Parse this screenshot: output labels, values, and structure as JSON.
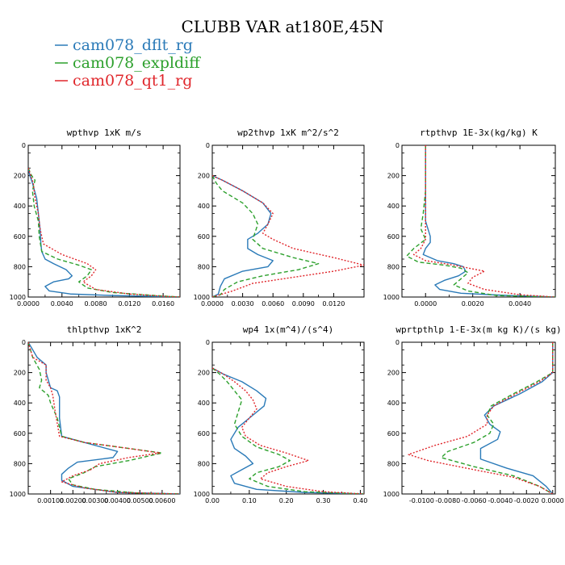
{
  "title": "CLUBB VAR at180E,45N",
  "legend": {
    "entries": [
      {
        "name": "cam078_dflt_rg",
        "color": "#2a7ab8",
        "dash": "solid"
      },
      {
        "name": "cam078_expldiff",
        "color": "#2ca02c",
        "dash": "dashed"
      },
      {
        "name": "cam078_qt1_rg",
        "color": "#e0262b",
        "dash": "dotted"
      }
    ]
  },
  "chart_data": [
    {
      "type": "line",
      "title": "wpthvp  1xK m/s",
      "xlim": [
        0,
        0.018
      ],
      "xticks": [
        0.0,
        0.004,
        0.008,
        0.012,
        0.016
      ],
      "xticklabels": [
        "0.0000",
        "0.0040",
        "0.0080",
        "0.0120",
        "0.0160"
      ],
      "ylim": [
        0,
        1000
      ],
      "yticks": [
        0,
        200,
        400,
        600,
        800,
        1000
      ],
      "series": [
        {
          "name": "cam078_dflt_rg",
          "x": [
            0.0,
            0.0002,
            0.0005,
            0.001,
            0.0012,
            0.0014,
            0.0015,
            0.0016,
            0.002,
            0.003,
            0.0045,
            0.0052,
            0.0048,
            0.003,
            0.002,
            0.0025,
            0.005,
            0.01,
            0.016,
            0.018
          ],
          "y": [
            150,
            200,
            250,
            350,
            450,
            550,
            650,
            700,
            750,
            780,
            820,
            860,
            880,
            900,
            930,
            960,
            980,
            990,
            997,
            1000
          ]
        },
        {
          "name": "cam078_expldiff",
          "x": [
            0.0,
            0.0004,
            0.0008,
            0.0005,
            0.0007,
            0.0012,
            0.0013,
            0.0016,
            0.0035,
            0.006,
            0.0075,
            0.007,
            0.006,
            0.007,
            0.01,
            0.015,
            0.018
          ],
          "y": [
            150,
            200,
            230,
            300,
            400,
            500,
            600,
            700,
            750,
            790,
            820,
            860,
            900,
            940,
            970,
            990,
            1000
          ]
        },
        {
          "name": "cam078_qt1_rg",
          "x": [
            0.0,
            0.0003,
            0.0006,
            0.0008,
            0.0012,
            0.0014,
            0.0018,
            0.004,
            0.007,
            0.008,
            0.0075,
            0.0065,
            0.008,
            0.012,
            0.016,
            0.018
          ],
          "y": [
            150,
            200,
            250,
            350,
            450,
            550,
            650,
            720,
            780,
            820,
            860,
            900,
            950,
            980,
            995,
            1000
          ]
        }
      ]
    },
    {
      "type": "line",
      "title": "wp2thvp  1xK m^2/s^2",
      "xlim": [
        0,
        0.015
      ],
      "xticks": [
        0.0,
        0.003,
        0.006,
        0.009,
        0.012
      ],
      "xticklabels": [
        "0.0000",
        "0.0030",
        "0.0060",
        "0.0090",
        "0.0120"
      ],
      "ylim": [
        0,
        1000
      ],
      "yticks": [
        0,
        200,
        400,
        600,
        800,
        1000
      ],
      "series": [
        {
          "name": "cam078_dflt_rg",
          "x": [
            0.0,
            0.001,
            0.003,
            0.005,
            0.0058,
            0.0055,
            0.0045,
            0.0035,
            0.0035,
            0.0045,
            0.006,
            0.0055,
            0.003,
            0.0012,
            0.0008,
            0.0006,
            0.0
          ],
          "y": [
            200,
            230,
            300,
            380,
            450,
            520,
            580,
            620,
            680,
            720,
            760,
            800,
            830,
            880,
            930,
            980,
            1000
          ]
        },
        {
          "name": "cam078_expldiff",
          "x": [
            0.0,
            0.0004,
            0.001,
            0.003,
            0.004,
            0.0045,
            0.0042,
            0.004,
            0.005,
            0.008,
            0.0105,
            0.0085,
            0.005,
            0.0025,
            0.0012,
            0.0008,
            0.0
          ],
          "y": [
            200,
            250,
            300,
            380,
            450,
            520,
            580,
            620,
            680,
            740,
            780,
            820,
            860,
            900,
            950,
            985,
            1000
          ]
        },
        {
          "name": "cam078_qt1_rg",
          "x": [
            0.0,
            0.001,
            0.003,
            0.005,
            0.006,
            0.0055,
            0.005,
            0.006,
            0.008,
            0.012,
            0.015,
            0.012,
            0.008,
            0.004,
            0.002,
            0.0
          ],
          "y": [
            200,
            230,
            300,
            380,
            450,
            520,
            580,
            620,
            680,
            740,
            790,
            830,
            870,
            910,
            960,
            1000
          ]
        }
      ]
    },
    {
      "type": "line",
      "title": "rtpthvp  1E-3x(kg/kg) K",
      "xlim": [
        -0.001,
        0.0055
      ],
      "xticks": [
        0.0,
        0.002,
        0.004
      ],
      "xticklabels": [
        "0.0000",
        "0.0020",
        "0.0040"
      ],
      "ylim": [
        0,
        1000
      ],
      "yticks": [
        0,
        200,
        400,
        600,
        800,
        1000
      ],
      "series": [
        {
          "name": "cam078_dflt_rg",
          "x": [
            0.0,
            0.0,
            0.0,
            0.0,
            0.0,
            0.0001,
            0.0002,
            0.0002,
            0.0,
            -0.0001,
            0.0005,
            0.0012,
            0.0016,
            0.0017,
            0.0014,
            0.0008,
            0.0004,
            0.0006,
            0.0015,
            0.0035,
            0.0055
          ],
          "y": [
            0,
            200,
            300,
            400,
            500,
            550,
            600,
            640,
            680,
            720,
            760,
            780,
            800,
            830,
            860,
            890,
            920,
            950,
            975,
            990,
            1000
          ]
        },
        {
          "name": "cam078_expldiff",
          "x": [
            0.0,
            0.0,
            -0.0001,
            -0.0002,
            0.0,
            -0.0005,
            -0.0008,
            -0.0003,
            0.0008,
            0.0015,
            0.0018,
            0.0015,
            0.0012,
            0.0018,
            0.003,
            0.0055
          ],
          "y": [
            0,
            300,
            450,
            550,
            620,
            680,
            730,
            770,
            790,
            810,
            840,
            880,
            920,
            960,
            990,
            1000
          ]
        },
        {
          "name": "cam078_qt1_rg",
          "x": [
            0.0,
            0.0,
            0.0,
            0.0,
            0.0,
            -0.0002,
            -0.0005,
            0.0,
            0.0012,
            0.0025,
            0.002,
            0.0018,
            0.0025,
            0.004,
            0.0055
          ],
          "y": [
            0,
            300,
            450,
            550,
            620,
            680,
            720,
            760,
            790,
            830,
            870,
            910,
            950,
            985,
            1000
          ]
        }
      ]
    },
    {
      "type": "line",
      "title": "thlpthvp  1xK^2",
      "xlim": [
        0,
        0.0068
      ],
      "xticks": [
        0.001,
        0.002,
        0.003,
        0.004,
        0.005,
        0.006
      ],
      "xticklabels": [
        "0.00100",
        "0.00200",
        "0.00300",
        "0.00400",
        "0.00500",
        "0.00600"
      ],
      "ylim": [
        0,
        1000
      ],
      "yticks": [
        0,
        200,
        400,
        600,
        800,
        1000
      ],
      "series": [
        {
          "name": "cam078_dflt_rg",
          "x": [
            0.0,
            0.0002,
            0.0004,
            0.0008,
            0.0008,
            0.0009,
            0.001,
            0.0013,
            0.0014,
            0.0014,
            0.0015,
            0.0025,
            0.004,
            0.0038,
            0.0022,
            0.0018,
            0.0015,
            0.0015,
            0.002,
            0.004,
            0.0068
          ],
          "y": [
            0,
            50,
            100,
            150,
            200,
            250,
            300,
            320,
            360,
            500,
            620,
            660,
            720,
            760,
            790,
            830,
            870,
            910,
            950,
            990,
            1000
          ]
        },
        {
          "name": "cam078_expldiff",
          "x": [
            0.0,
            0.0001,
            0.0002,
            0.0005,
            0.0006,
            0.0005,
            0.0009,
            0.001,
            0.0013,
            0.0015,
            0.0025,
            0.0045,
            0.006,
            0.0045,
            0.003,
            0.0025,
            0.0018,
            0.002,
            0.003,
            0.005,
            0.0068
          ],
          "y": [
            0,
            50,
            100,
            180,
            250,
            300,
            350,
            400,
            500,
            620,
            660,
            700,
            730,
            780,
            820,
            860,
            900,
            940,
            970,
            995,
            1000
          ]
        },
        {
          "name": "cam078_qt1_rg",
          "x": [
            0.0,
            0.0001,
            0.0002,
            0.0008,
            0.0008,
            0.001,
            0.0011,
            0.0012,
            0.0014,
            0.0025,
            0.0045,
            0.0059,
            0.0045,
            0.0032,
            0.0028,
            0.002,
            0.0015,
            0.0025,
            0.004,
            0.0068
          ],
          "y": [
            0,
            50,
            100,
            150,
            250,
            300,
            350,
            450,
            620,
            660,
            700,
            730,
            760,
            800,
            840,
            880,
            920,
            960,
            990,
            1000
          ]
        }
      ]
    },
    {
      "type": "line",
      "title": "wp4  1x(m^4)/(s^4)",
      "xlim": [
        0,
        0.41
      ],
      "xticks": [
        0.0,
        0.1,
        0.2,
        0.3,
        0.4
      ],
      "xticklabels": [
        "0.00",
        "0.10",
        "0.20",
        "0.30",
        "0.40"
      ],
      "ylim": [
        0,
        1000
      ],
      "yticks": [
        0,
        200,
        400,
        600,
        800,
        1000
      ],
      "series": [
        {
          "name": "cam078_dflt_rg",
          "x": [
            0.0,
            0.03,
            0.08,
            0.12,
            0.145,
            0.14,
            0.11,
            0.07,
            0.05,
            0.06,
            0.09,
            0.11,
            0.08,
            0.05,
            0.06,
            0.12,
            0.25,
            0.41
          ],
          "y": [
            170,
            210,
            260,
            320,
            370,
            420,
            480,
            560,
            640,
            700,
            750,
            800,
            840,
            880,
            930,
            970,
            990,
            1000
          ]
        },
        {
          "name": "cam078_expldiff",
          "x": [
            0.0,
            0.02,
            0.04,
            0.06,
            0.08,
            0.07,
            0.06,
            0.08,
            0.12,
            0.18,
            0.21,
            0.18,
            0.12,
            0.1,
            0.15,
            0.25,
            0.41
          ],
          "y": [
            170,
            210,
            260,
            320,
            380,
            460,
            540,
            620,
            690,
            740,
            780,
            820,
            860,
            900,
            950,
            985,
            1000
          ]
        },
        {
          "name": "cam078_qt1_rg",
          "x": [
            0.0,
            0.03,
            0.06,
            0.09,
            0.11,
            0.12,
            0.1,
            0.08,
            0.09,
            0.13,
            0.2,
            0.26,
            0.2,
            0.15,
            0.13,
            0.2,
            0.3,
            0.41
          ],
          "y": [
            170,
            210,
            260,
            320,
            380,
            440,
            500,
            560,
            620,
            680,
            730,
            780,
            820,
            860,
            900,
            950,
            985,
            1000
          ]
        }
      ]
    },
    {
      "type": "line",
      "title": "wprtpthlp  1-E-3x(m kg K)/(s kg)",
      "xlim": [
        -0.0115,
        0.0002
      ],
      "xticks": [
        -0.01,
        -0.008,
        -0.006,
        -0.004,
        -0.002,
        0.0
      ],
      "xticklabels": [
        "-0.0100",
        "-0.0080",
        "-0.0060",
        "-0.0040",
        "-0.0020",
        "0.0000"
      ],
      "ylim": [
        0,
        1000
      ],
      "yticks": [
        0,
        200,
        400,
        600,
        800,
        1000
      ],
      "series": [
        {
          "name": "cam078_dflt_rg",
          "x": [
            0.0,
            0.0,
            -0.0008,
            -0.0025,
            -0.0045,
            -0.0052,
            -0.0048,
            -0.004,
            -0.0042,
            -0.0055,
            -0.0055,
            -0.0035,
            -0.0015,
            -0.0005,
            0.0
          ],
          "y": [
            0,
            200,
            260,
            340,
            420,
            480,
            540,
            590,
            640,
            700,
            770,
            830,
            880,
            950,
            1000
          ]
        },
        {
          "name": "cam078_expldiff",
          "x": [
            0.0,
            0.0,
            -0.0012,
            -0.003,
            -0.0047,
            -0.005,
            -0.0045,
            -0.0048,
            -0.006,
            -0.008,
            -0.0085,
            -0.006,
            -0.003,
            -0.001,
            0.0
          ],
          "y": [
            0,
            200,
            260,
            340,
            420,
            480,
            540,
            600,
            660,
            720,
            760,
            820,
            880,
            950,
            1000
          ]
        },
        {
          "name": "cam078_qt1_rg",
          "x": [
            0.0,
            0.0,
            -0.001,
            -0.0028,
            -0.0045,
            -0.005,
            -0.005,
            -0.0065,
            -0.009,
            -0.011,
            -0.0095,
            -0.006,
            -0.003,
            -0.001,
            0.0
          ],
          "y": [
            0,
            200,
            260,
            340,
            420,
            480,
            540,
            620,
            680,
            740,
            780,
            840,
            890,
            950,
            1000
          ]
        }
      ]
    }
  ]
}
